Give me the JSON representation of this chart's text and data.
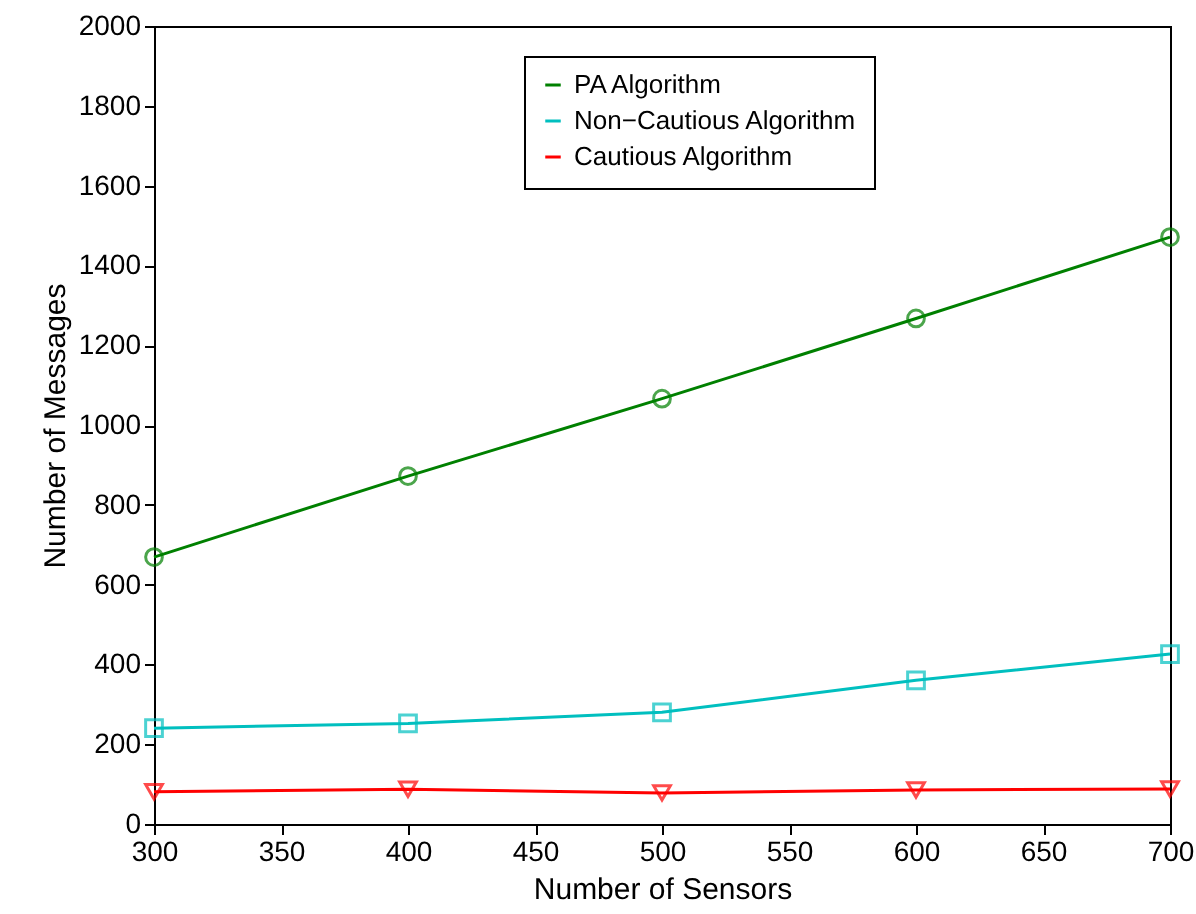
{
  "chart_data": {
    "type": "line",
    "xlabel": "Number of Sensors",
    "ylabel": "Number of Messages",
    "x": [
      300,
      400,
      500,
      600,
      700
    ],
    "series": [
      {
        "name": "PA Algorithm",
        "color": "#008000",
        "marker": "circle",
        "values": [
          669,
          872,
          1066,
          1267,
          1471
        ]
      },
      {
        "name": "Non−Cautious Algorithm",
        "color": "#00bfbf",
        "marker": "square",
        "values": [
          240,
          252,
          280,
          360,
          426
        ]
      },
      {
        "name": "Cautious Algorithm",
        "color": "#ff0000",
        "marker": "triangle",
        "values": [
          81,
          87,
          78,
          85,
          88
        ]
      }
    ],
    "xlim": [
      300,
      700
    ],
    "xticks": [
      300,
      350,
      400,
      450,
      500,
      550,
      600,
      650,
      700
    ],
    "ylim": [
      0,
      2000
    ],
    "yticks": [
      0,
      200,
      400,
      600,
      800,
      1000,
      1200,
      1400,
      1600,
      1800,
      2000
    ],
    "grid": false,
    "legend": "top",
    "line_style": "solid"
  }
}
